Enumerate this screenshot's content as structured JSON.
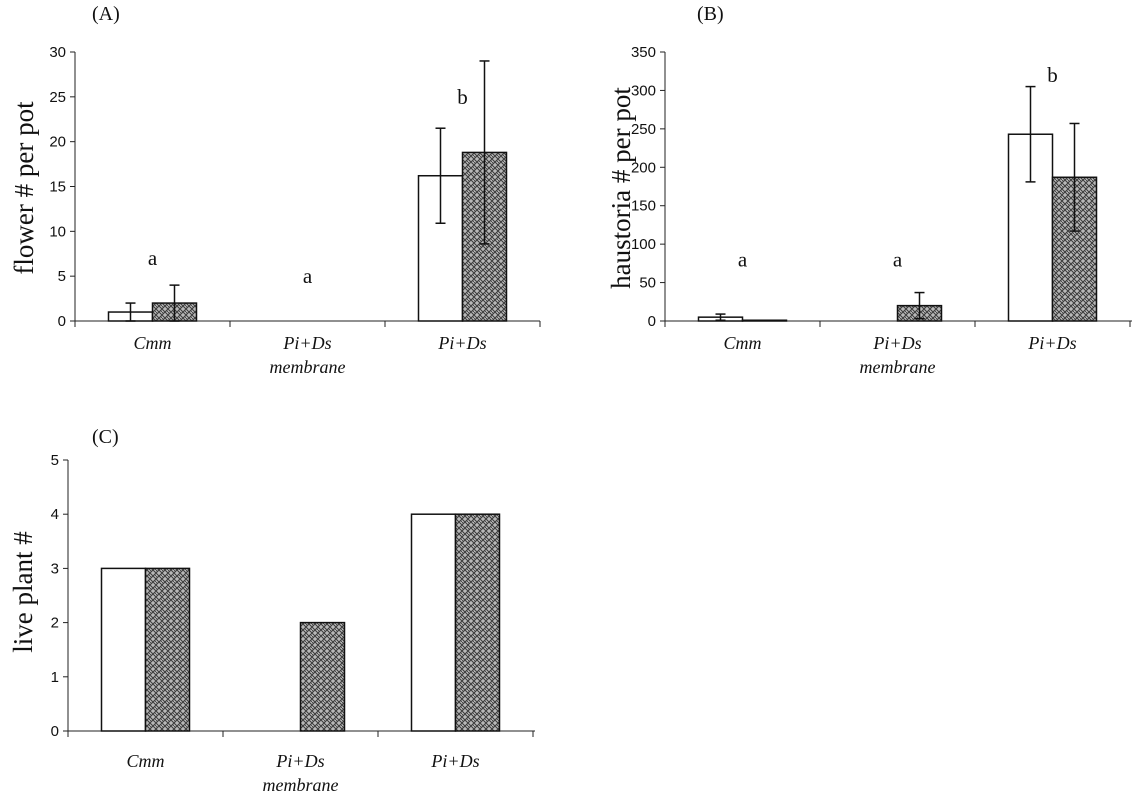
{
  "chart_data": [
    {
      "type": "bar",
      "panel_label": "(A)",
      "ylabel": "flower # per pot",
      "ylim": [
        0,
        30
      ],
      "yticks": [
        0,
        5,
        10,
        15,
        20,
        25,
        30
      ],
      "categories": [
        [
          "Cmm"
        ],
        [
          "Pi+Ds",
          "membrane"
        ],
        [
          "Pi+Ds"
        ]
      ],
      "series": [
        {
          "values": [
            1,
            0,
            16.2
          ],
          "errors": [
            1,
            0,
            5.3
          ],
          "fill": "white"
        },
        {
          "values": [
            2,
            0,
            18.8
          ],
          "errors": [
            2,
            0,
            10.2
          ],
          "fill": "hatched"
        }
      ],
      "annotations": [
        "a",
        "a",
        "b"
      ],
      "annotation_y": [
        7,
        5,
        25
      ]
    },
    {
      "type": "bar",
      "panel_label": "(B)",
      "ylabel": "haustoria # per pot",
      "ylim": [
        0,
        350
      ],
      "yticks": [
        0,
        50,
        100,
        150,
        200,
        250,
        300,
        350
      ],
      "categories": [
        [
          "Cmm"
        ],
        [
          "Pi+Ds",
          "membrane"
        ],
        [
          "Pi+Ds"
        ]
      ],
      "series": [
        {
          "values": [
            5,
            0,
            243
          ],
          "errors": [
            4,
            0,
            62
          ],
          "fill": "white"
        },
        {
          "values": [
            1,
            20,
            187
          ],
          "errors": [
            0,
            17,
            70
          ],
          "fill": "hatched"
        }
      ],
      "annotations": [
        "a",
        "a",
        "b"
      ],
      "annotation_y": [
        80,
        80,
        320
      ]
    },
    {
      "type": "bar",
      "panel_label": "(C)",
      "ylabel": "live plant #",
      "ylim": [
        0,
        5
      ],
      "yticks": [
        0,
        1,
        2,
        3,
        4,
        5
      ],
      "categories": [
        [
          "Cmm"
        ],
        [
          "Pi+Ds",
          "membrane"
        ],
        [
          "Pi+Ds"
        ]
      ],
      "series": [
        {
          "values": [
            3,
            0,
            4
          ],
          "fill": "white"
        },
        {
          "values": [
            3,
            2,
            4
          ],
          "fill": "hatched"
        }
      ]
    }
  ]
}
